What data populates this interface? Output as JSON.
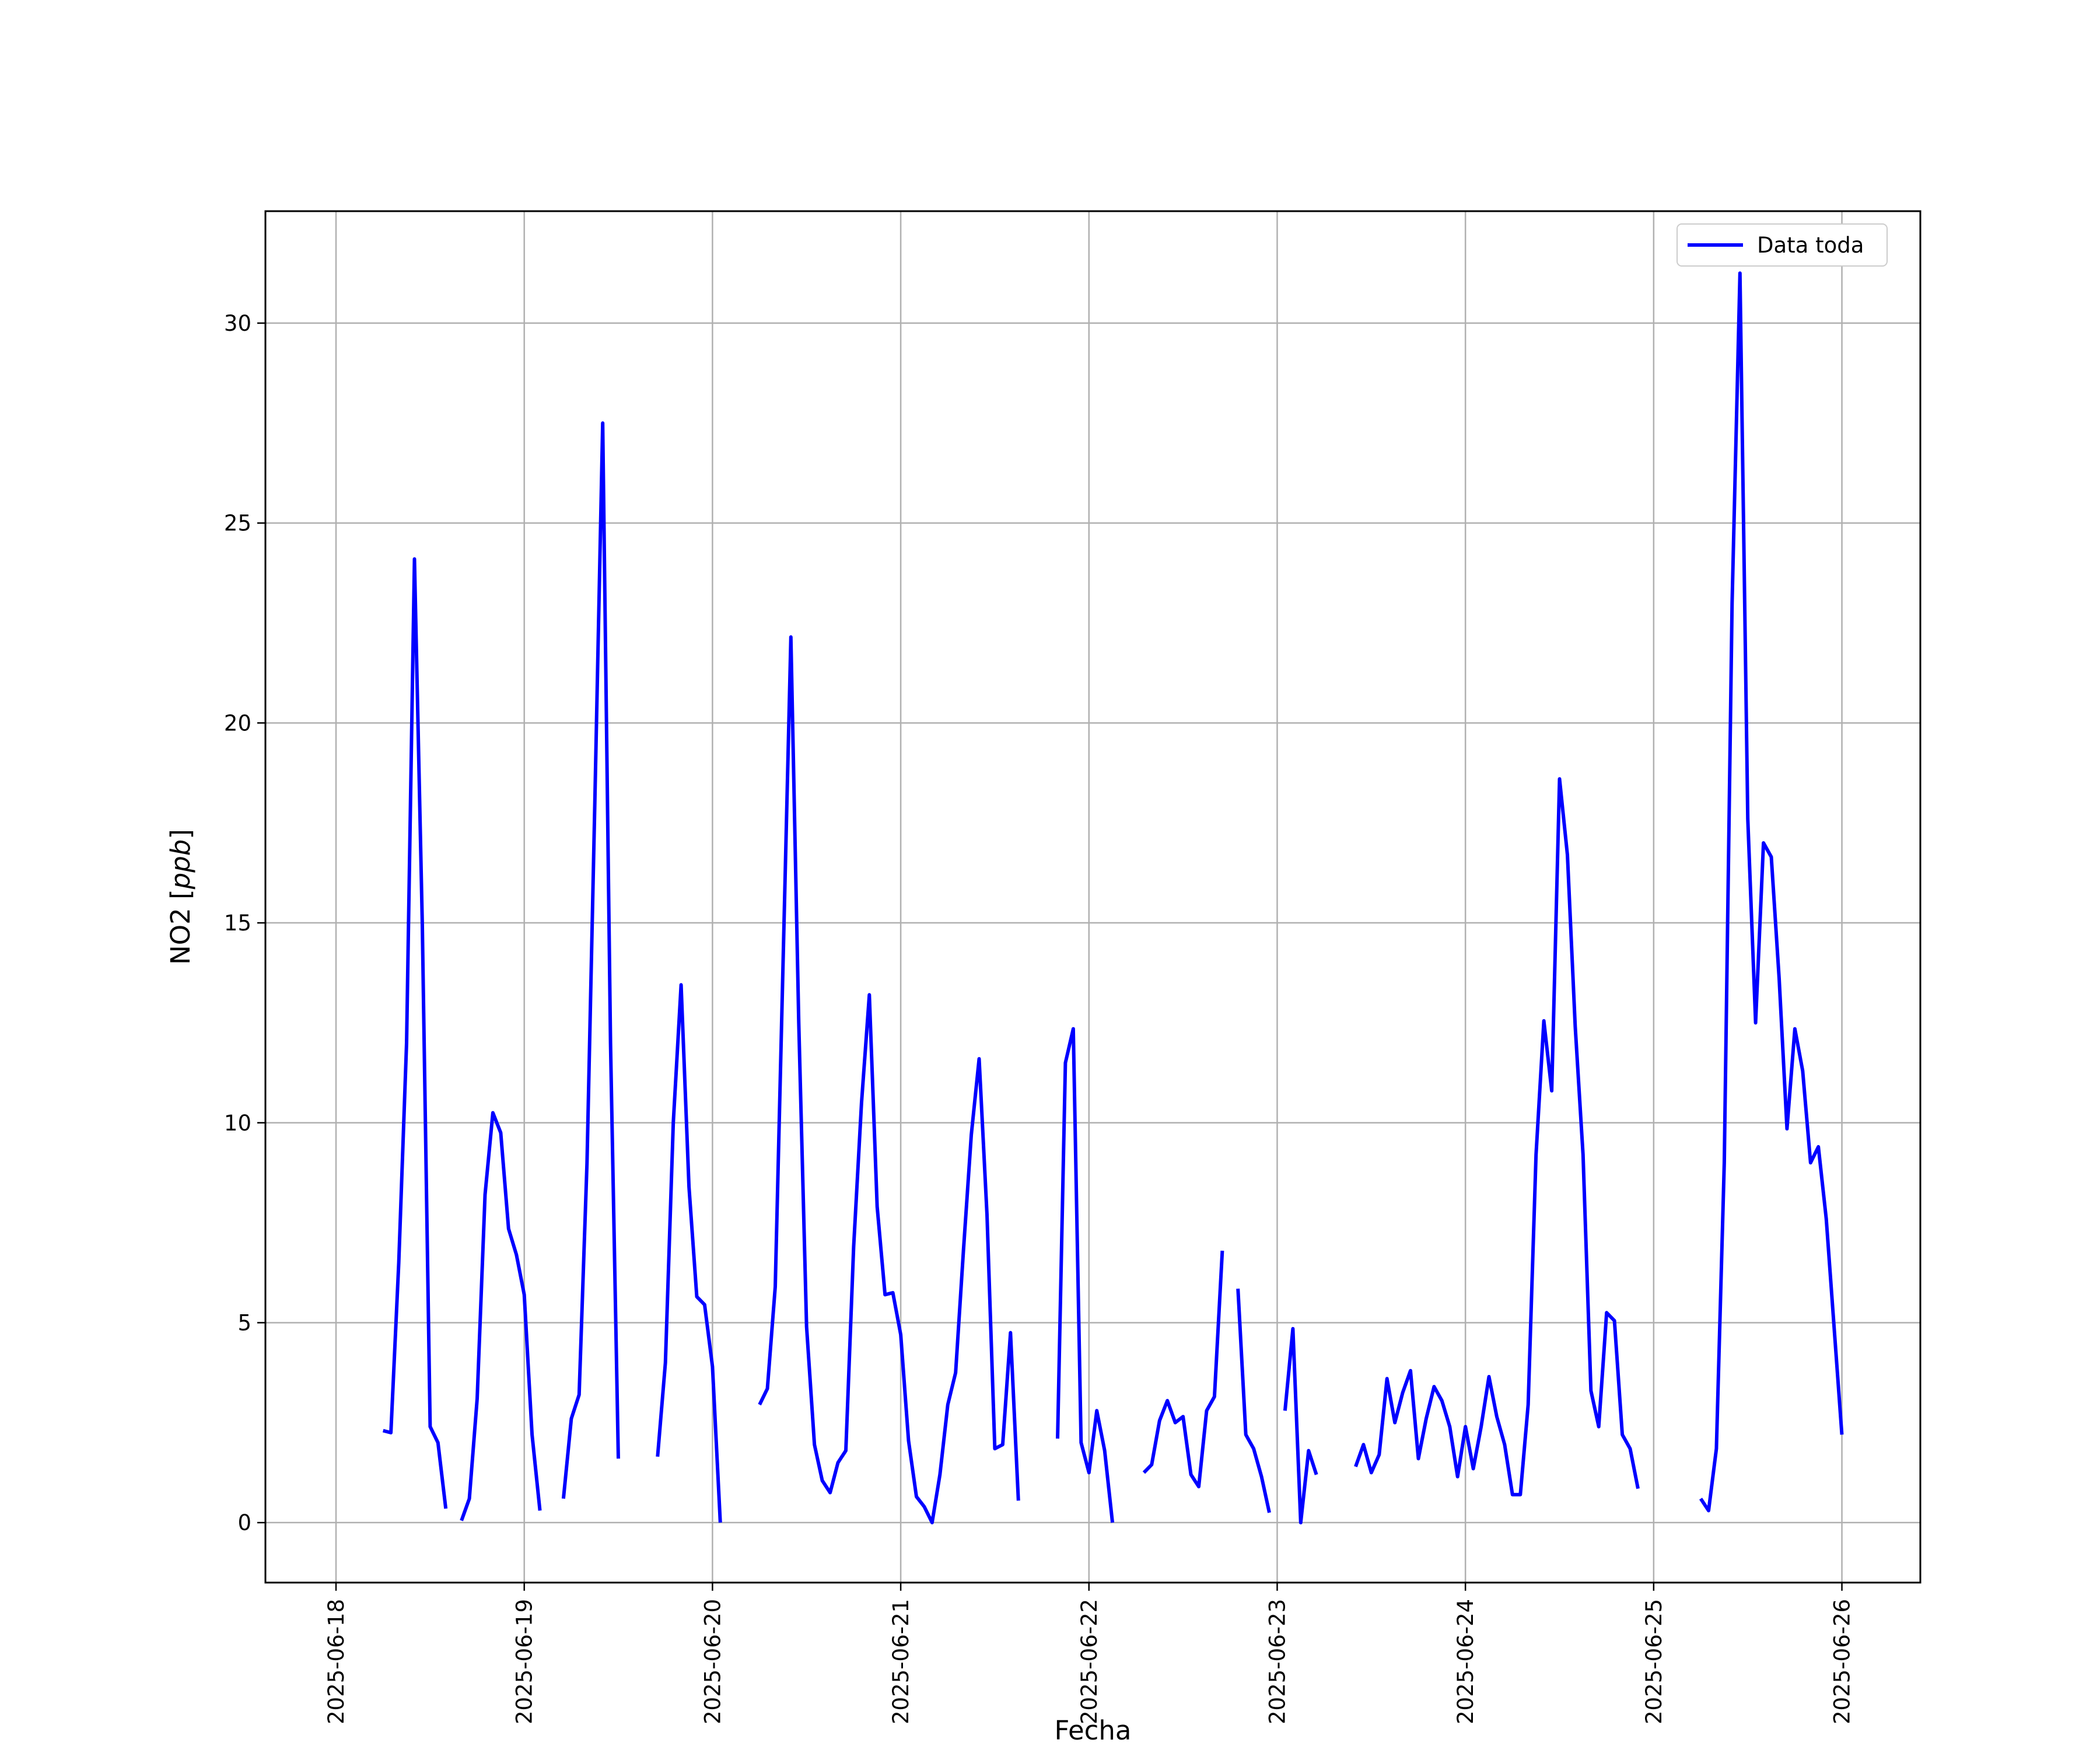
{
  "chart_data": {
    "type": "line",
    "xlabel": "Fecha",
    "ylabel_main": "NO2 [",
    "ylabel_unit": "ppb",
    "ylabel_close": "]",
    "xlim": [
      "2025-06-17 15:00",
      "2025-06-26 10:00"
    ],
    "ylim": [
      -1.5,
      32.8
    ],
    "yticks": [
      0,
      5,
      10,
      15,
      20,
      25,
      30
    ],
    "xticks": [
      "2025-06-18",
      "2025-06-19",
      "2025-06-20",
      "2025-06-21",
      "2025-06-22",
      "2025-06-23",
      "2025-06-24",
      "2025-06-25",
      "2025-06-26"
    ],
    "grid": true,
    "legend_position": "top-right",
    "colors": {
      "series": "#0000ff",
      "grid": "#b0b0b0",
      "frame": "#000000"
    },
    "series": [
      {
        "name": "Data toda",
        "segments": [
          [
            [
              "2025-06-18 06:00",
              2.3
            ],
            [
              "2025-06-18 07:00",
              2.25
            ],
            [
              "2025-06-18 08:00",
              6.5
            ],
            [
              "2025-06-18 09:00",
              12
            ],
            [
              "2025-06-18 10:00",
              24.1
            ],
            [
              "2025-06-18 11:00",
              15
            ],
            [
              "2025-06-18 12:00",
              2.4
            ],
            [
              "2025-06-18 13:00",
              2
            ],
            [
              "2025-06-18 14:00",
              0.35
            ]
          ],
          [
            [
              "2025-06-18 16:00",
              0.05
            ],
            [
              "2025-06-18 17:00",
              0.6
            ],
            [
              "2025-06-18 18:00",
              3.1
            ],
            [
              "2025-06-18 19:00",
              8.2
            ],
            [
              "2025-06-18 20:00",
              10.25
            ],
            [
              "2025-06-18 21:00",
              9.75
            ],
            [
              "2025-06-18 22:00",
              7.35
            ],
            [
              "2025-06-18 23:00",
              6.7
            ],
            [
              "2025-06-19 00:00",
              5.7
            ],
            [
              "2025-06-19 01:00",
              2.2
            ],
            [
              "2025-06-19 02:00",
              0.3
            ]
          ],
          [
            [
              "2025-06-19 05:00",
              0.6
            ],
            [
              "2025-06-19 06:00",
              2.6
            ],
            [
              "2025-06-19 07:00",
              3.2
            ],
            [
              "2025-06-19 08:00",
              9
            ],
            [
              "2025-06-19 09:00",
              18
            ],
            [
              "2025-06-19 10:00",
              27.5
            ],
            [
              "2025-06-19 11:00",
              12
            ],
            [
              "2025-06-19 12:00",
              1.6
            ]
          ],
          [
            [
              "2025-06-19 17:00",
              1.65
            ],
            [
              "2025-06-19 18:00",
              4
            ],
            [
              "2025-06-19 19:00",
              10
            ],
            [
              "2025-06-19 20:00",
              13.45
            ],
            [
              "2025-06-19 21:00",
              8.4
            ],
            [
              "2025-06-19 22:00",
              5.65
            ],
            [
              "2025-06-19 23:00",
              5.45
            ],
            [
              "2025-06-20 00:00",
              3.9
            ],
            [
              "2025-06-20 01:00",
              0
            ]
          ],
          [
            [
              "2025-06-20 06:00",
              2.95
            ],
            [
              "2025-06-20 07:00",
              3.35
            ],
            [
              "2025-06-20 08:00",
              5.9
            ],
            [
              "2025-06-20 09:00",
              14
            ],
            [
              "2025-06-20 10:00",
              22.15
            ],
            [
              "2025-06-20 11:00",
              12.5
            ],
            [
              "2025-06-20 12:00",
              4.9
            ],
            [
              "2025-06-20 13:00",
              1.95
            ],
            [
              "2025-06-20 14:00",
              1.05
            ],
            [
              "2025-06-20 15:00",
              0.75
            ],
            [
              "2025-06-20 16:00",
              1.5
            ],
            [
              "2025-06-20 17:00",
              1.8
            ],
            [
              "2025-06-20 18:00",
              6.9
            ],
            [
              "2025-06-20 19:00",
              10.5
            ],
            [
              "2025-06-20 20:00",
              13.2
            ],
            [
              "2025-06-20 21:00",
              7.9
            ],
            [
              "2025-06-20 22:00",
              5.7
            ],
            [
              "2025-06-20 23:00",
              5.75
            ],
            [
              "2025-06-21 00:00",
              4.7
            ],
            [
              "2025-06-21 01:00",
              2.05
            ],
            [
              "2025-06-21 02:00",
              0.65
            ],
            [
              "2025-06-21 03:00",
              0.4
            ],
            [
              "2025-06-21 04:00",
              0
            ],
            [
              "2025-06-21 05:00",
              1.2
            ],
            [
              "2025-06-21 06:00",
              2.95
            ],
            [
              "2025-06-21 07:00",
              3.75
            ],
            [
              "2025-06-21 08:00",
              6.8
            ],
            [
              "2025-06-21 09:00",
              9.7
            ],
            [
              "2025-06-21 10:00",
              11.6
            ],
            [
              "2025-06-21 11:00",
              7.7
            ],
            [
              "2025-06-21 12:00",
              1.85
            ],
            [
              "2025-06-21 13:00",
              1.95
            ],
            [
              "2025-06-21 14:00",
              4.75
            ],
            [
              "2025-06-21 15:00",
              0.55
            ]
          ],
          [
            [
              "2025-06-21 20:00",
              2.1
            ],
            [
              "2025-06-21 21:00",
              11.5
            ],
            [
              "2025-06-21 22:00",
              12.35
            ],
            [
              "2025-06-21 23:00",
              2
            ],
            [
              "2025-06-22 00:00",
              1.25
            ],
            [
              "2025-06-22 01:00",
              2.8
            ],
            [
              "2025-06-22 02:00",
              1.8
            ],
            [
              "2025-06-22 03:00",
              0
            ]
          ],
          [
            [
              "2025-06-22 07:00",
              1.25
            ],
            [
              "2025-06-22 08:00",
              1.45
            ],
            [
              "2025-06-22 09:00",
              2.55
            ],
            [
              "2025-06-22 10:00",
              3.05
            ],
            [
              "2025-06-22 11:00",
              2.5
            ],
            [
              "2025-06-22 12:00",
              2.65
            ],
            [
              "2025-06-22 13:00",
              1.2
            ],
            [
              "2025-06-22 14:00",
              0.9
            ],
            [
              "2025-06-22 15:00",
              2.8
            ],
            [
              "2025-06-22 16:00",
              3.15
            ],
            [
              "2025-06-22 17:00",
              6.8
            ]
          ],
          [
            [
              "2025-06-22 19:00",
              5.85
            ],
            [
              "2025-06-22 20:00",
              2.2
            ],
            [
              "2025-06-22 21:00",
              1.85
            ],
            [
              "2025-06-22 22:00",
              1.15
            ],
            [
              "2025-06-22 23:00",
              0.25
            ]
          ],
          [
            [
              "2025-06-23 01:00",
              2.8
            ],
            [
              "2025-06-23 02:00",
              4.85
            ],
            [
              "2025-06-23 03:00",
              0
            ],
            [
              "2025-06-23 04:00",
              1.8
            ],
            [
              "2025-06-23 05:00",
              1.2
            ]
          ],
          [
            [
              "2025-06-23 10:00",
              1.4
            ],
            [
              "2025-06-23 11:00",
              1.95
            ],
            [
              "2025-06-23 12:00",
              1.25
            ],
            [
              "2025-06-23 13:00",
              1.7
            ],
            [
              "2025-06-23 14:00",
              3.6
            ],
            [
              "2025-06-23 15:00",
              2.5
            ],
            [
              "2025-06-23 16:00",
              3.25
            ],
            [
              "2025-06-23 17:00",
              3.8
            ],
            [
              "2025-06-23 18:00",
              1.6
            ],
            [
              "2025-06-23 19:00",
              2.6
            ],
            [
              "2025-06-23 20:00",
              3.4
            ],
            [
              "2025-06-23 21:00",
              3.05
            ],
            [
              "2025-06-23 22:00",
              2.4
            ],
            [
              "2025-06-23 23:00",
              1.15
            ],
            [
              "2025-06-24 00:00",
              2.4
            ],
            [
              "2025-06-24 01:00",
              1.35
            ],
            [
              "2025-06-24 02:00",
              2.4
            ],
            [
              "2025-06-24 03:00",
              3.65
            ],
            [
              "2025-06-24 04:00",
              2.65
            ],
            [
              "2025-06-24 05:00",
              1.95
            ],
            [
              "2025-06-24 06:00",
              0.7
            ],
            [
              "2025-06-24 07:00",
              0.7
            ],
            [
              "2025-06-24 08:00",
              2.95
            ],
            [
              "2025-06-24 09:00",
              9.2
            ],
            [
              "2025-06-24 10:00",
              12.55
            ],
            [
              "2025-06-24 11:00",
              10.8
            ],
            [
              "2025-06-24 12:00",
              18.6
            ],
            [
              "2025-06-24 13:00",
              16.7
            ],
            [
              "2025-06-24 14:00",
              12.4
            ],
            [
              "2025-06-24 15:00",
              9.2
            ],
            [
              "2025-06-24 16:00",
              3.3
            ],
            [
              "2025-06-24 17:00",
              2.4
            ],
            [
              "2025-06-24 18:00",
              5.25
            ],
            [
              "2025-06-24 19:00",
              5.05
            ],
            [
              "2025-06-24 20:00",
              2.2
            ],
            [
              "2025-06-24 21:00",
              1.85
            ],
            [
              "2025-06-24 22:00",
              0.85
            ]
          ],
          [
            [
              "2025-06-25 06:00",
              0.6
            ],
            [
              "2025-06-25 07:00",
              0.3
            ],
            [
              "2025-06-25 08:00",
              1.85
            ],
            [
              "2025-06-25 09:00",
              9
            ],
            [
              "2025-06-25 10:00",
              23
            ],
            [
              "2025-06-25 11:00",
              31.25
            ],
            [
              "2025-06-25 12:00",
              17.6
            ],
            [
              "2025-06-25 13:00",
              12.5
            ],
            [
              "2025-06-25 14:00",
              17
            ],
            [
              "2025-06-25 15:00",
              16.65
            ],
            [
              "2025-06-25 16:00",
              13.6
            ],
            [
              "2025-06-25 17:00",
              9.85
            ],
            [
              "2025-06-25 18:00",
              12.35
            ],
            [
              "2025-06-25 19:00",
              11.3
            ],
            [
              "2025-06-25 20:00",
              9
            ],
            [
              "2025-06-25 21:00",
              9.4
            ],
            [
              "2025-06-25 22:00",
              7.6
            ],
            [
              "2025-06-25 23:00",
              4.9
            ],
            [
              "2025-06-26 00:00",
              2.2
            ]
          ]
        ]
      }
    ]
  }
}
